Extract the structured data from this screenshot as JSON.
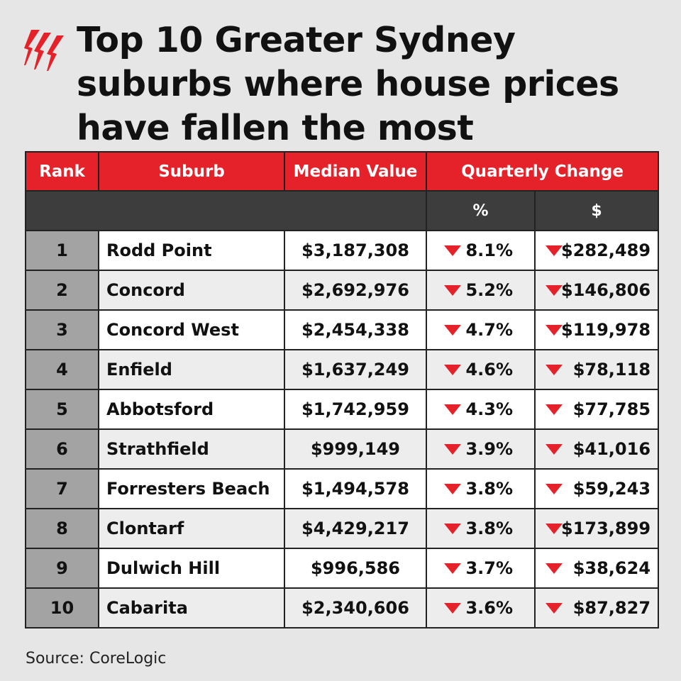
{
  "brand": {
    "logo_icon": "sbs-logo-icon",
    "accent": "#e5222a"
  },
  "title_lines": [
    "Top 10 Greater Sydney",
    "suburbs where house prices",
    "have fallen the most"
  ],
  "source": "Source: CoreLogic",
  "chart_data": {
    "type": "table",
    "columns": [
      "Rank",
      "Suburb",
      "Median Value",
      "Quarterly Change"
    ],
    "subcolumns": [
      "%",
      "$"
    ],
    "rows": [
      {
        "rank": "1",
        "suburb": "Rodd Point",
        "median": "$3,187,308",
        "pct": "8.1%",
        "dollar": "$282,489"
      },
      {
        "rank": "2",
        "suburb": "Concord",
        "median": "$2,692,976",
        "pct": "5.2%",
        "dollar": "$146,806"
      },
      {
        "rank": "3",
        "suburb": "Concord West",
        "median": "$2,454,338",
        "pct": "4.7%",
        "dollar": "$119,978"
      },
      {
        "rank": "4",
        "suburb": "Enfield",
        "median": "$1,637,249",
        "pct": "4.6%",
        "dollar": "$78,118"
      },
      {
        "rank": "5",
        "suburb": "Abbotsford",
        "median": "$1,742,959",
        "pct": "4.3%",
        "dollar": "$77,785"
      },
      {
        "rank": "6",
        "suburb": "Strathfield",
        "median": "$999,149",
        "pct": "3.9%",
        "dollar": "$41,016"
      },
      {
        "rank": "7",
        "suburb": "Forresters Beach",
        "median": "$1,494,578",
        "pct": "3.8%",
        "dollar": "$59,243"
      },
      {
        "rank": "8",
        "suburb": "Clontarf",
        "median": "$4,429,217",
        "pct": "3.8%",
        "dollar": "$173,899"
      },
      {
        "rank": "9",
        "suburb": "Dulwich Hill",
        "median": "$996,586",
        "pct": "3.7%",
        "dollar": "$38,624"
      },
      {
        "rank": "10",
        "suburb": "Cabarita",
        "median": "$2,340,606",
        "pct": "3.6%",
        "dollar": "$87,827"
      }
    ],
    "change_direction_icon": "down-triangle-icon"
  }
}
